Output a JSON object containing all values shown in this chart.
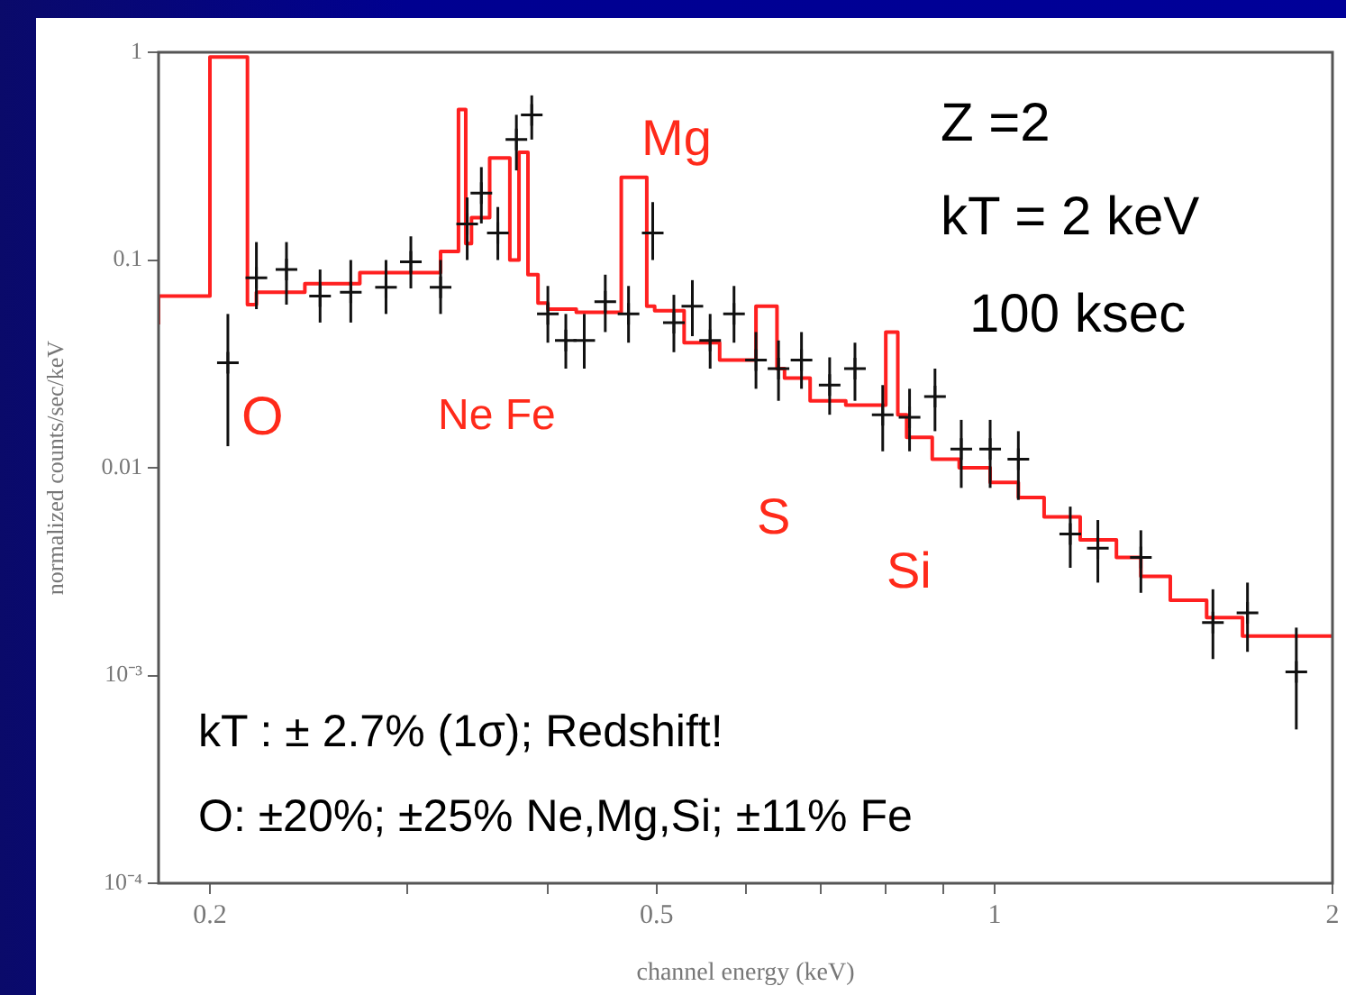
{
  "chart_data": {
    "type": "scatter",
    "xlabel": "channel energy (keV)",
    "ylabel": "normalized counts/sec/keV",
    "log": "xy",
    "grid": false,
    "legend": false,
    "xlim": [
      0.18,
      2
    ],
    "xticks": [
      0.2,
      {
        "value": 0.3,
        "label": null
      },
      {
        "value": 0.4,
        "label": null
      },
      0.5,
      {
        "value": 0.6,
        "label": null
      },
      {
        "value": 0.7,
        "label": null
      },
      {
        "value": 0.8,
        "label": null
      },
      {
        "value": 0.9,
        "label": null
      },
      1,
      2
    ],
    "ylim": [
      0.0001,
      1
    ],
    "yticks": [
      {
        "value": 0.0001,
        "label": "10⁻⁴"
      },
      {
        "value": 0.001,
        "label": "10⁻³"
      },
      0.01,
      0.1,
      1
    ],
    "series": [
      {
        "type": "scatter",
        "marker": "cross",
        "color": "#111111",
        "x": [
          0.2075,
          0.22,
          0.234,
          0.2507,
          0.267,
          0.287,
          0.302,
          0.321,
          0.339,
          0.349,
          0.361,
          0.375,
          0.387,
          0.4,
          0.415,
          0.431,
          0.45,
          0.472,
          0.496,
          0.518,
          0.538,
          0.558,
          0.586,
          0.613,
          0.642,
          0.673,
          0.713,
          0.751,
          0.795,
          0.84,
          0.885,
          0.934,
          0.991,
          1.05,
          1.168,
          1.236,
          1.35,
          1.565,
          1.68,
          1.857
        ],
        "values": [
          0.032,
          0.082,
          0.09,
          0.067,
          0.07,
          0.074,
          0.098,
          0.074,
          0.149,
          0.21,
          0.135,
          0.38,
          0.5,
          0.055,
          0.041,
          0.041,
          0.063,
          0.055,
          0.135,
          0.05,
          0.06,
          0.041,
          0.055,
          0.033,
          0.03,
          0.033,
          0.025,
          0.03,
          0.018,
          0.0175,
          0.022,
          0.0123,
          0.0123,
          0.011,
          0.0048,
          0.0041,
          0.0037,
          0.0018,
          0.002,
          0.00104
        ],
        "errors": [
          [
            0.0127,
            0.055
          ],
          [
            0.058,
            0.122
          ],
          [
            0.061,
            0.122
          ],
          [
            0.05,
            0.09
          ],
          [
            0.05,
            0.1
          ],
          [
            0.055,
            0.1
          ],
          [
            0.073,
            0.13
          ],
          [
            0.055,
            0.1
          ],
          [
            0.1,
            0.2
          ],
          [
            0.15,
            0.28
          ],
          [
            0.1,
            0.18
          ],
          [
            0.27,
            0.5
          ],
          [
            0.38,
            0.62
          ],
          [
            0.04,
            0.075
          ],
          [
            0.03,
            0.055
          ],
          [
            0.03,
            0.055
          ],
          [
            0.045,
            0.085
          ],
          [
            0.04,
            0.075
          ],
          [
            0.1,
            0.19
          ],
          [
            0.036,
            0.068
          ],
          [
            0.043,
            0.08
          ],
          [
            0.03,
            0.055
          ],
          [
            0.04,
            0.075
          ],
          [
            0.024,
            0.045
          ],
          [
            0.021,
            0.041
          ],
          [
            0.024,
            0.045
          ],
          [
            0.018,
            0.034
          ],
          [
            0.021,
            0.04
          ],
          [
            0.012,
            0.025
          ],
          [
            0.012,
            0.024
          ],
          [
            0.015,
            0.03
          ],
          [
            0.008,
            0.017
          ],
          [
            0.008,
            0.017
          ],
          [
            0.007,
            0.015
          ],
          [
            0.0033,
            0.0065
          ],
          [
            0.0028,
            0.0056
          ],
          [
            0.0025,
            0.005
          ],
          [
            0.0012,
            0.0026
          ],
          [
            0.0013,
            0.0028
          ],
          [
            0.00055,
            0.0017
          ]
        ]
      },
      {
        "type": "step",
        "marker": "none",
        "color": "#ff2020",
        "x": [
          0.18,
          0.2,
          0.216,
          0.22,
          0.243,
          0.272,
          0.321,
          0.333,
          0.338,
          0.342,
          0.355,
          0.37,
          0.377,
          0.384,
          0.392,
          0.4,
          0.424,
          0.465,
          0.49,
          0.498,
          0.529,
          0.569,
          0.613,
          0.64,
          0.65,
          0.685,
          0.737,
          0.8,
          0.82,
          0.835,
          0.88,
          0.93,
          0.991,
          1.05,
          1.107,
          1.192,
          1.284,
          1.35,
          1.434,
          1.545,
          1.663,
          1.8,
          2.0
        ],
        "values": [
          0.049,
          0.067,
          0.95,
          0.061,
          0.07,
          0.077,
          0.087,
          0.11,
          0.53,
          0.12,
          0.16,
          0.31,
          0.1,
          0.33,
          0.085,
          0.062,
          0.058,
          0.056,
          0.25,
          0.06,
          0.057,
          0.04,
          0.033,
          0.06,
          0.03,
          0.027,
          0.021,
          0.02,
          0.045,
          0.018,
          0.014,
          0.011,
          0.01,
          0.0085,
          0.0072,
          0.0058,
          0.0045,
          0.0037,
          0.003,
          0.0023,
          0.0019,
          0.00155,
          0.00155
        ]
      }
    ],
    "annotations": [
      "O",
      "Ne Fe",
      "Mg",
      "S",
      "Si",
      "Z =2",
      "kT = 2 keV",
      "100 ksec",
      "kT : ± 2.7% (1σ); Redshift!",
      "O: ±20%; ±25% Ne,Mg,Si; ±11% Fe"
    ]
  }
}
